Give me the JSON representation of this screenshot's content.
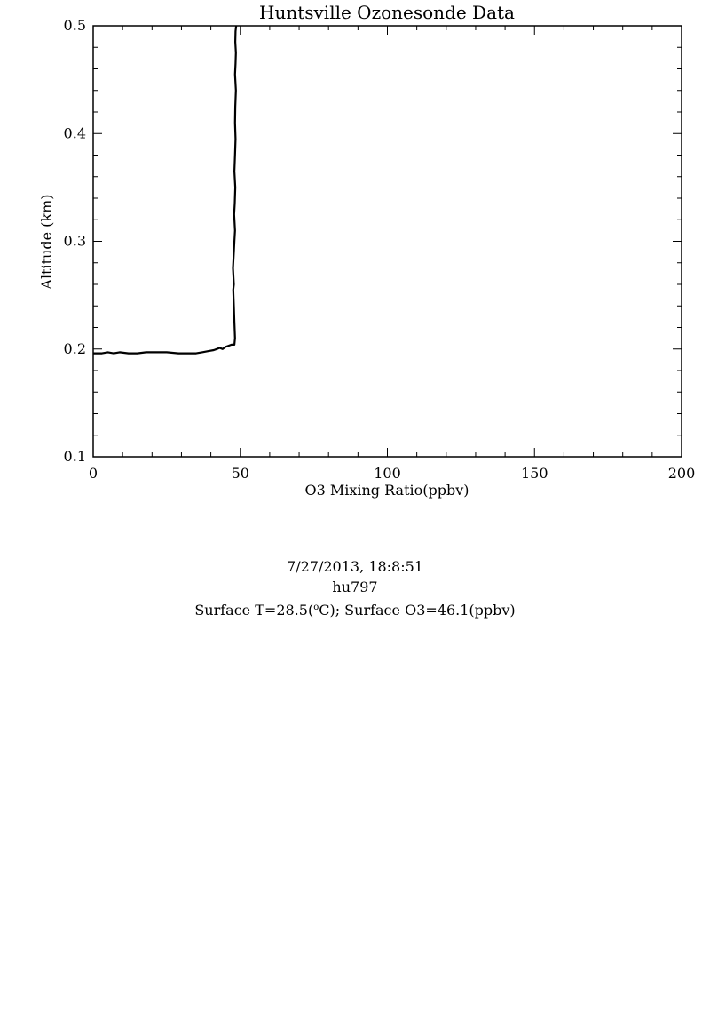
{
  "chart_data": {
    "type": "line",
    "title": "Huntsville Ozonesonde Data",
    "xlabel": "O3 Mixing Ratio(ppbv)",
    "ylabel": "Altitude (km)",
    "xlim": [
      0,
      200
    ],
    "ylim": [
      0.1,
      0.5
    ],
    "x_ticks": [
      0,
      50,
      100,
      150,
      200
    ],
    "y_ticks": [
      0.1,
      0.2,
      0.3,
      0.4,
      0.5
    ],
    "x_tick_labels": [
      "0",
      "50",
      "100",
      "150",
      "200"
    ],
    "y_tick_labels": [
      "0.1",
      "0.2",
      "0.3",
      "0.4",
      "0.5"
    ],
    "grid": false,
    "line_color": "#000000",
    "series": [
      {
        "x": [
          0,
          3,
          5,
          7,
          9,
          12,
          15,
          18,
          21,
          25,
          29,
          33,
          35,
          37,
          39,
          41,
          42,
          43,
          44,
          45,
          46,
          47,
          48,
          48.2,
          48.0,
          47.8,
          47.6,
          47.8,
          47.5,
          47.8,
          48.0,
          48.2,
          47.9,
          48.1,
          48.3,
          48.0,
          48.2,
          48.4,
          48.2,
          48.3,
          48.5,
          48.2,
          48.4,
          48.5,
          48.3,
          48.4,
          48.6
        ],
        "y": [
          0.196,
          0.196,
          0.197,
          0.196,
          0.197,
          0.196,
          0.196,
          0.197,
          0.197,
          0.197,
          0.196,
          0.196,
          0.196,
          0.197,
          0.198,
          0.199,
          0.2,
          0.201,
          0.2,
          0.202,
          0.203,
          0.204,
          0.204,
          0.21,
          0.225,
          0.24,
          0.255,
          0.26,
          0.275,
          0.29,
          0.3,
          0.31,
          0.325,
          0.335,
          0.35,
          0.365,
          0.38,
          0.395,
          0.41,
          0.425,
          0.44,
          0.455,
          0.465,
          0.475,
          0.485,
          0.495,
          0.5
        ]
      }
    ]
  },
  "caption": {
    "datetime": "7/27/2013, 18:8:51",
    "station_id": "hu797",
    "surface_prefix": "Surface T=28.5(",
    "surface_sup": "o",
    "surface_suffix": "C); Surface O3=46.1(ppbv)"
  }
}
